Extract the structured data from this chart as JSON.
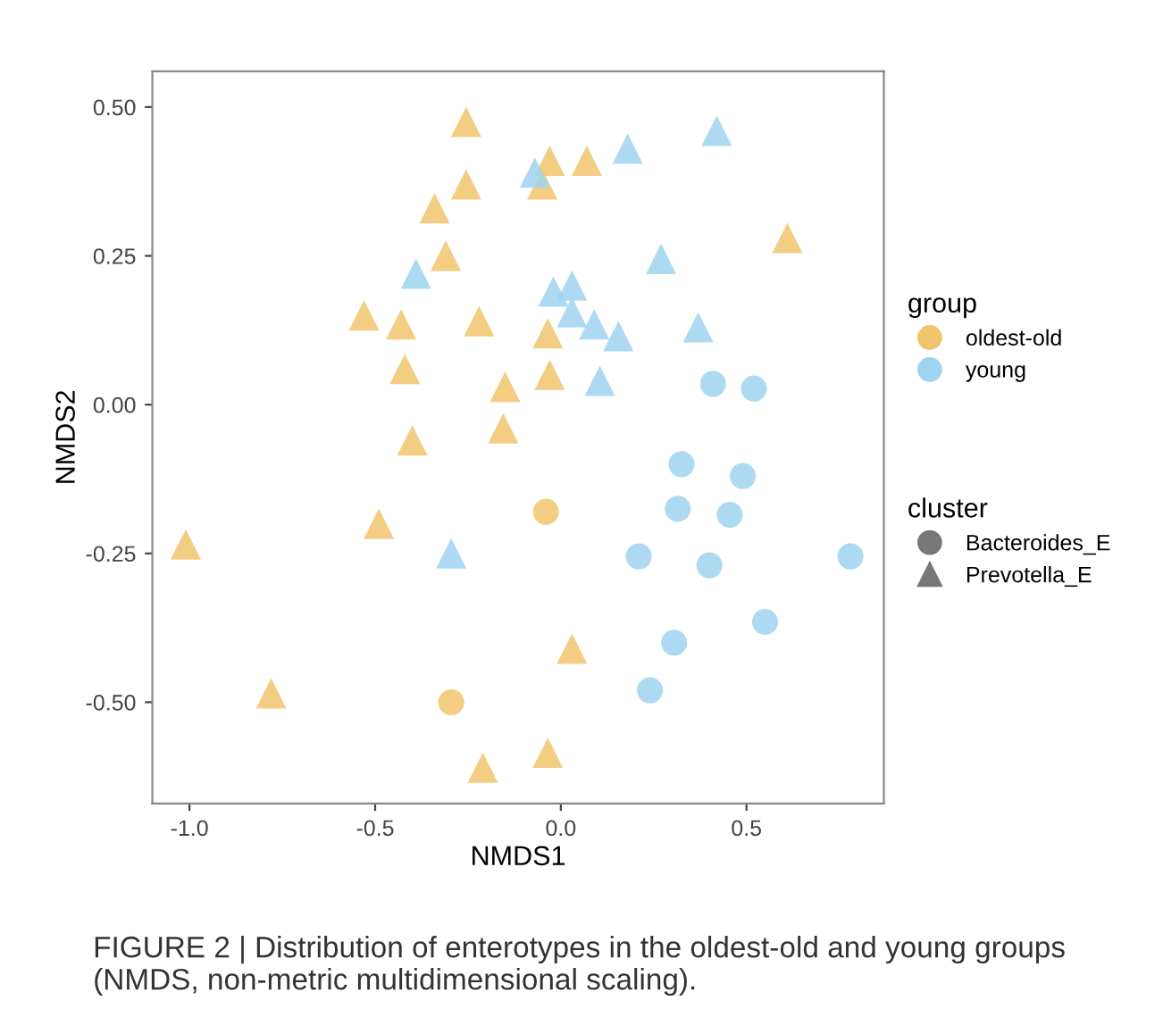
{
  "chart_data": {
    "type": "scatter",
    "xlabel": "NMDS1",
    "ylabel": "NMDS2",
    "xlim": [
      -1.1,
      0.87
    ],
    "ylim": [
      -0.67,
      0.56
    ],
    "xticks": [
      {
        "value": -1.0,
        "label": "-1.0"
      },
      {
        "value": -0.5,
        "label": "-0.5"
      },
      {
        "value": 0.0,
        "label": "0.0"
      },
      {
        "value": 0.5,
        "label": "0.5"
      }
    ],
    "yticks": [
      {
        "value": 0.5,
        "label": "0.50"
      },
      {
        "value": 0.25,
        "label": "0.25"
      },
      {
        "value": 0.0,
        "label": "0.00"
      },
      {
        "value": -0.25,
        "label": "-0.25"
      },
      {
        "value": -0.5,
        "label": "-0.50"
      }
    ],
    "grid": false,
    "legend": "right",
    "legend_title": [
      "group",
      "cluster"
    ],
    "series": [
      {
        "name": "oldest-old",
        "marker": "circle",
        "color": "#f0c46c",
        "x": [
          -0.04,
          -0.295
        ],
        "values": [
          -0.18,
          -0.5
        ]
      },
      {
        "marker": "triangle",
        "color": "#f0c46c",
        "x": [
          -0.255,
          -0.255,
          -0.34,
          -0.31,
          -0.53,
          -0.43,
          -0.22,
          -0.42,
          -0.4,
          -0.03,
          0.07,
          -0.05,
          0.61,
          -0.035,
          -0.03,
          -0.15,
          -0.155,
          -0.49,
          -1.01,
          -0.78,
          -0.21,
          0.03,
          -0.035
        ],
        "values": [
          0.475,
          0.37,
          0.33,
          0.25,
          0.15,
          0.135,
          0.14,
          0.06,
          -0.06,
          0.41,
          0.41,
          0.37,
          0.28,
          0.12,
          0.05,
          0.03,
          -0.04,
          -0.2,
          -0.235,
          -0.485,
          -0.61,
          -0.41,
          -0.585
        ]
      },
      {
        "name": "young",
        "marker": "circle",
        "color": "#9fd3f0",
        "x": [
          0.41,
          0.52,
          0.325,
          0.49,
          0.315,
          0.455,
          0.21,
          0.4,
          0.78,
          0.55,
          0.305,
          0.24
        ],
        "values": [
          0.035,
          0.027,
          -0.1,
          -0.12,
          -0.175,
          -0.185,
          -0.255,
          -0.27,
          -0.255,
          -0.365,
          -0.4,
          -0.48
        ]
      },
      {
        "marker": "triangle",
        "color": "#9fd3f0",
        "x": [
          -0.07,
          0.18,
          0.42,
          0.27,
          -0.02,
          0.03,
          0.03,
          0.09,
          0.155,
          0.37,
          0.105,
          -0.39,
          -0.295
        ],
        "values": [
          0.39,
          0.43,
          0.46,
          0.245,
          0.19,
          0.2,
          0.155,
          0.135,
          0.115,
          0.13,
          0.04,
          0.22,
          -0.25
        ]
      }
    ],
    "annotations": [
      "Bacteroides_E",
      "Prevotella_E",
      "FIGURE 2 | Distribution of enterotypes in the oldest-old and young groups (NMDS, non-metric multidimensional scaling)."
    ]
  }
}
